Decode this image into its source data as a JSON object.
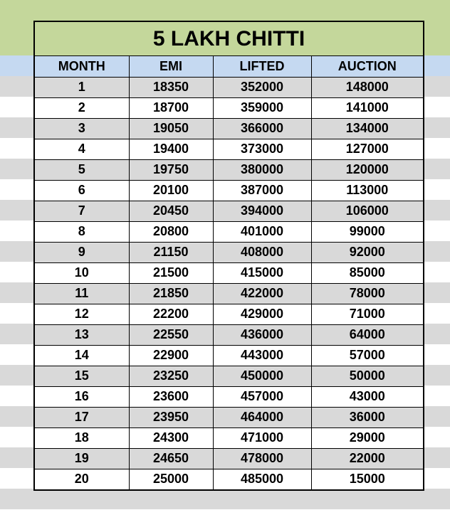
{
  "title": "5 LAKH CHITTI",
  "columns": [
    "MONTH",
    "EMI",
    "LIFTED",
    "AUCTION"
  ],
  "rows": [
    [
      "1",
      "18350",
      "352000",
      "148000"
    ],
    [
      "2",
      "18700",
      "359000",
      "141000"
    ],
    [
      "3",
      "19050",
      "366000",
      "134000"
    ],
    [
      "4",
      "19400",
      "373000",
      "127000"
    ],
    [
      "5",
      "19750",
      "380000",
      "120000"
    ],
    [
      "6",
      "20100",
      "387000",
      "113000"
    ],
    [
      "7",
      "20450",
      "394000",
      "106000"
    ],
    [
      "8",
      "20800",
      "401000",
      "99000"
    ],
    [
      "9",
      "21150",
      "408000",
      "92000"
    ],
    [
      "10",
      "21500",
      "415000",
      "85000"
    ],
    [
      "11",
      "21850",
      "422000",
      "78000"
    ],
    [
      "12",
      "22200",
      "429000",
      "71000"
    ],
    [
      "13",
      "22550",
      "436000",
      "64000"
    ],
    [
      "14",
      "22900",
      "443000",
      "57000"
    ],
    [
      "15",
      "23250",
      "450000",
      "50000"
    ],
    [
      "16",
      "23600",
      "457000",
      "43000"
    ],
    [
      "17",
      "23950",
      "464000",
      "36000"
    ],
    [
      "18",
      "24300",
      "471000",
      "29000"
    ],
    [
      "19",
      "24650",
      "478000",
      "22000"
    ],
    [
      "20",
      "25000",
      "485000",
      "15000"
    ]
  ],
  "colors": {
    "title_fill": "#c4d79b",
    "header_fill": "#c5d9f1",
    "stripe_gray": "#d9d9d9",
    "stripe_white": "#ffffff",
    "border": "#000000"
  }
}
